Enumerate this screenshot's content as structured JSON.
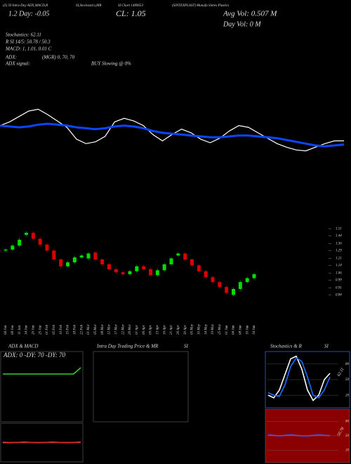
{
  "header": {
    "top": [
      "(Z) 50 Intra-Day ADX,MACD,R",
      "SI,Stochastics,MR",
      "SI Chart 1489653",
      "(SINTEXPLAST) Munafa Sintex Plastics"
    ],
    "day": "1.2 Day: -0.05",
    "close": "CL: 1.05",
    "avg_vol": "Avg Vol: 0.507 M",
    "day_vol": "Day Vol: 0  M",
    "stoch": "Stochastics: 62.11",
    "rsi": "R     SI 14/5: 50.78 / 50.3",
    "macd": "MACD: 1, 1.01, 0.01 C",
    "adx": "ADX:",
    "mgr": "(MGR) 0, 70, 70",
    "adx_signal": "ADX  signal:",
    "signal": "BUY Slowing @ 0%"
  },
  "chart_data": [
    {
      "type": "candlestick",
      "categories": [
        "04 Jan",
        "08 Jan",
        "11 Jan",
        "14 Jan",
        "20 Jan",
        "25 Jan",
        "01 Feb",
        "05 Feb",
        "10 Feb",
        "15 Feb",
        "18 Feb",
        "22 Feb",
        "01 Mar",
        "05 Mar",
        "08 Mar",
        "12 Mar",
        "17 Mar",
        "22 Mar",
        "26 Mar",
        "01 Apr",
        "06 Apr",
        "09 Apr",
        "13 Apr",
        "16 Apr",
        "21 Apr",
        "26 Apr",
        "30 Apr",
        "05 May",
        "10 May",
        "14 May",
        "19 May",
        "25 May",
        "01 Jun",
        "04 Jun",
        "08 Jun",
        "10 Jun",
        "14 Jun"
      ],
      "open": [
        1.29,
        1.3,
        1.34,
        1.45,
        1.47,
        1.41,
        1.35,
        1.29,
        1.2,
        1.13,
        1.17,
        1.22,
        1.21,
        1.27,
        1.2,
        1.15,
        1.1,
        1.07,
        1.05,
        1.08,
        1.13,
        1.1,
        1.04,
        1.09,
        1.15,
        1.24,
        1.26,
        1.2,
        1.14,
        1.08,
        1.02,
        0.97,
        0.92,
        0.84,
        0.9,
        0.97,
        1.01
      ],
      "close": [
        1.3,
        1.34,
        1.4,
        1.47,
        1.41,
        1.35,
        1.29,
        1.2,
        1.13,
        1.17,
        1.22,
        1.24,
        1.26,
        1.2,
        1.15,
        1.1,
        1.07,
        1.05,
        1.08,
        1.13,
        1.1,
        1.04,
        1.09,
        1.15,
        1.21,
        1.26,
        1.2,
        1.14,
        1.08,
        1.02,
        0.97,
        0.92,
        0.86,
        0.9,
        0.97,
        1.01,
        1.05
      ],
      "up_color": "#00dd00",
      "down_color": "#dd0000",
      "ylim": [
        0.8,
        1.55
      ],
      "yticks": [
        1.51,
        1.44,
        1.36,
        1.29,
        1.21,
        1.14,
        1.06,
        0.99,
        0.91,
        0.84
      ],
      "line_ylim": [
        0.9,
        1.6
      ],
      "series": [
        {
          "color": "#ffffff",
          "values": [
            1.3,
            1.34,
            1.4,
            1.46,
            1.48,
            1.42,
            1.35,
            1.28,
            1.15,
            1.1,
            1.12,
            1.18,
            1.34,
            1.38,
            1.35,
            1.3,
            1.2,
            1.13,
            1.2,
            1.26,
            1.22,
            1.15,
            1.11,
            1.16,
            1.24,
            1.3,
            1.28,
            1.22,
            1.16,
            1.1,
            1.06,
            1.03,
            1.02,
            1.06,
            1.1,
            1.13,
            1.13
          ]
        },
        {
          "color": "#0a46ff",
          "values": [
            1.3,
            1.29,
            1.28,
            1.29,
            1.31,
            1.32,
            1.31,
            1.3,
            1.28,
            1.27,
            1.26,
            1.27,
            1.29,
            1.3,
            1.29,
            1.27,
            1.24,
            1.22,
            1.21,
            1.2,
            1.19,
            1.18,
            1.17,
            1.17,
            1.18,
            1.19,
            1.19,
            1.18,
            1.17,
            1.16,
            1.14,
            1.12,
            1.1,
            1.08,
            1.07,
            1.08,
            1.09
          ]
        }
      ]
    },
    {
      "type": "line",
      "title": "ADX  & MACD",
      "label": "ADX: 0  -DY: 70  -DY: 70",
      "ylim": [
        0,
        100
      ],
      "series": [
        {
          "color": "#33cc33",
          "values": [
            70,
            70,
            70,
            70,
            70,
            70,
            70,
            70,
            70,
            70,
            70,
            80
          ]
        }
      ]
    },
    {
      "type": "line",
      "ylim": [
        -1,
        1
      ],
      "series": [
        {
          "color": "#ffffff",
          "values": [
            0.05,
            0.04,
            0.05,
            0.06,
            0.05,
            0.04,
            0.05,
            0.06,
            0.05,
            0.04,
            0.05,
            0.06
          ]
        },
        {
          "color": "#dd2222",
          "values": [
            0.06,
            0.05,
            0.05,
            0.05,
            0.05,
            0.05,
            0.05,
            0.05,
            0.05,
            0.05,
            0.05,
            0.05
          ]
        }
      ]
    },
    {
      "type": "line",
      "title": "Stochastics & R",
      "title2": "SI",
      "label": "62.11",
      "ylim": [
        0,
        100
      ],
      "yticks": [
        80,
        50,
        20
      ],
      "series": [
        {
          "color": "#ffffff",
          "values": [
            20,
            15,
            30,
            60,
            90,
            95,
            70,
            30,
            10,
            20,
            50,
            62.11
          ]
        },
        {
          "color": "#1e6bff",
          "values": [
            25,
            20,
            18,
            40,
            75,
            92,
            85,
            55,
            20,
            15,
            30,
            55
          ]
        }
      ]
    },
    {
      "type": "line",
      "label": "50.78",
      "ylim": [
        0,
        100
      ],
      "yticks": [
        80,
        50,
        20
      ],
      "series": [
        {
          "color": "#3a5cff",
          "values": [
            52,
            51,
            50,
            51,
            52,
            51,
            50,
            50,
            51,
            52,
            51,
            50.78
          ]
        }
      ]
    }
  ],
  "intraday": {
    "title": "Intra  Day Trading Price  & MR",
    "title2": "SI"
  }
}
